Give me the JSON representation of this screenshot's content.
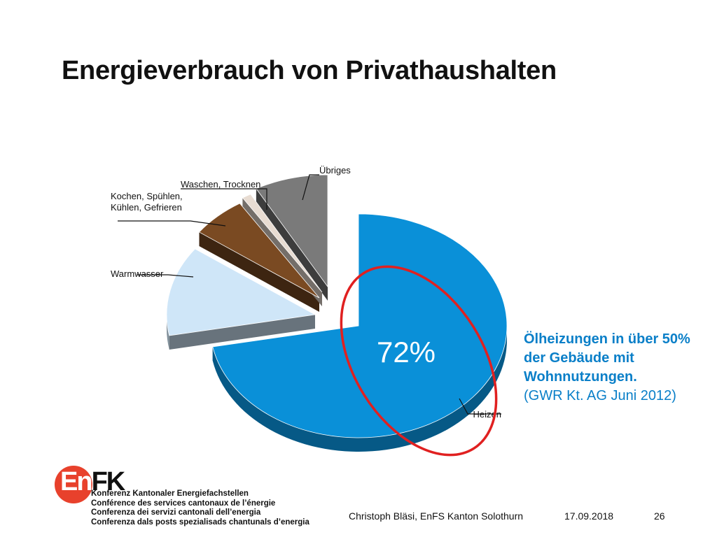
{
  "slide": {
    "title": "Energieverbrauch von Privathaushalten"
  },
  "chart_data": {
    "type": "pie",
    "title": "",
    "slices": [
      {
        "label": "Heizen",
        "value": 72,
        "color": "#0a90d8"
      },
      {
        "label": "Warmwasser",
        "value": 13,
        "color": "#cfe6f8"
      },
      {
        "label": "Kochen, Spühlen,\nKühlen, Gefrieren",
        "value": 6,
        "color": "#7a4a22"
      },
      {
        "label": "Waschen, Trocknen",
        "value": 1,
        "color": "#e8dcd2"
      },
      {
        "label": "Übriges",
        "value": 8,
        "color": "#7a7a7a"
      }
    ],
    "highlight_label": "72%",
    "highlight_color": "#e02020"
  },
  "note": {
    "strong": "Ölheizungen in über 50% der Gebäude mit Wohnnutzungen.",
    "source": "(GWR  Kt. AG Juni 2012)"
  },
  "logo": {
    "word_en": "En",
    "word_fk": "FK",
    "lines": [
      "Konferenz Kantonaler Energiefachstellen",
      "Conférence des services cantonaux de l’énergie",
      "Conferenza dei servizi cantonali dell’energia",
      "Conferenza dals posts spezialisads chantunals d’energia"
    ]
  },
  "footer": {
    "author": "Christoph Bläsi, EnFS Kanton Solothurn",
    "date": "17.09.2018",
    "page": "26"
  }
}
